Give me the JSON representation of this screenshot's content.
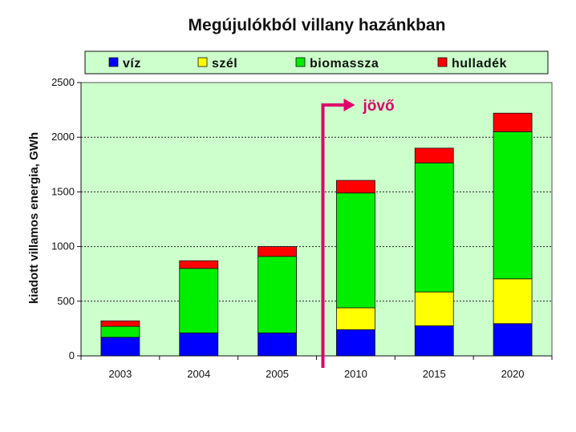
{
  "chart_data": {
    "type": "bar",
    "stacked": true,
    "title": "Megújulókból villany hazánkban",
    "xlabel": "",
    "ylabel": "kiadott villamos energia, GWh",
    "ylim": [
      0,
      2500
    ],
    "yticks": [
      0,
      500,
      1000,
      1500,
      2000,
      2500
    ],
    "ytick_labels": [
      "0",
      "500",
      "1000",
      "1500",
      "2000",
      "2500"
    ],
    "grid": true,
    "categories": [
      "2003",
      "2004",
      "2005",
      "2010",
      "2015",
      "2020"
    ],
    "series": [
      {
        "name": "víz",
        "color": "#0000ff",
        "values": [
          170,
          210,
          210,
          240,
          275,
          295
        ]
      },
      {
        "name": "szél",
        "color": "#ffff00",
        "values": [
          0,
          0,
          0,
          200,
          310,
          410
        ]
      },
      {
        "name": "biomassza",
        "color": "#00ee00",
        "values": [
          100,
          590,
          700,
          1050,
          1180,
          1345
        ]
      },
      {
        "name": "hulladék",
        "color": "#ff0000",
        "values": [
          50,
          70,
          90,
          115,
          135,
          170
        ]
      }
    ],
    "annotation": {
      "text": "jövő",
      "between_categories": [
        "2005",
        "2010"
      ],
      "color": "#e0006a"
    },
    "colors": {
      "plot_background": "#ccffcc",
      "legend_background": "#ccffcc",
      "bar_stroke": "#111111"
    }
  }
}
